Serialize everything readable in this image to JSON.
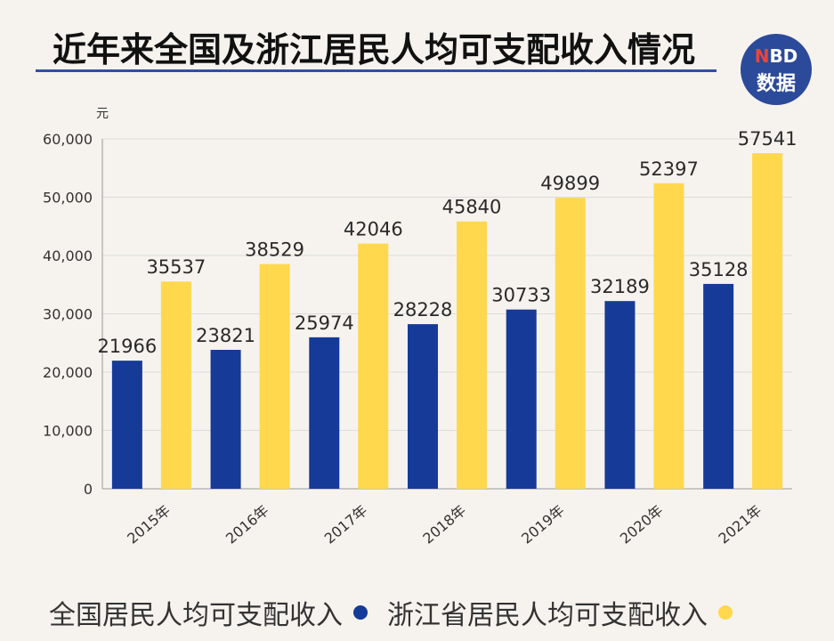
{
  "title": "近年来全国及浙江居民人均可支配收入情况",
  "logo": {
    "line1_n": "N",
    "line1_rest": "BD",
    "line2": "数据"
  },
  "colors": {
    "national": "#163a97",
    "zhejiang": "#ffd84d",
    "grid": "#dcdcdc"
  },
  "chart_data": {
    "type": "bar",
    "title": "近年来全国及浙江居民人均可支配收入情况",
    "unit_label": "元",
    "categories": [
      "2015年",
      "2016年",
      "2017年",
      "2018年",
      "2019年",
      "2020年",
      "2021年"
    ],
    "series": [
      {
        "name": "全国居民人均可支配收入",
        "values": [
          21966,
          23821,
          25974,
          28228,
          30733,
          32189,
          35128
        ]
      },
      {
        "name": "浙江省居民人均可支配收入",
        "values": [
          35537,
          38529,
          42046,
          45840,
          49899,
          52397,
          57541
        ]
      }
    ],
    "ylim": [
      0,
      60000
    ],
    "yticks": [
      "0",
      "10,000",
      "20,000",
      "30,000",
      "40,000",
      "50,000",
      "60,000"
    ],
    "grid": true,
    "legend_position": "bottom"
  }
}
